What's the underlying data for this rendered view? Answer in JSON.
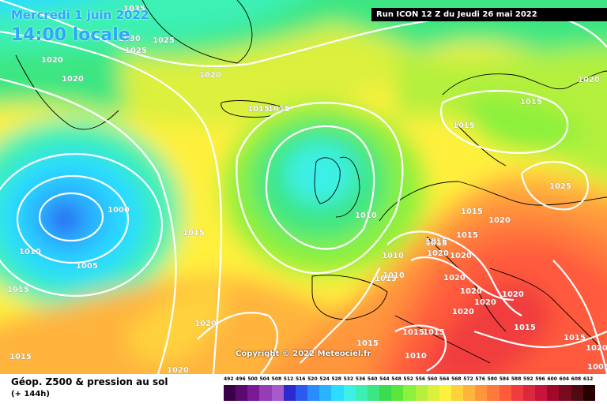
{
  "overlay": {
    "date": "Mercredi 1 juin 2022",
    "time": "14:00 locale",
    "run": "Run ICON 12 Z du Jeudi 26 mai 2022",
    "copyright": "Copyright © 2022 Meteociel.fr"
  },
  "footer": {
    "title": "Géop. Z500 & pression au sol",
    "subtitle": "(+ 144h)"
  },
  "scale": {
    "labels": [
      "492",
      "496",
      "500",
      "504",
      "508",
      "512",
      "516",
      "520",
      "524",
      "528",
      "532",
      "536",
      "540",
      "544",
      "548",
      "552",
      "556",
      "560",
      "564",
      "568",
      "572",
      "576",
      "580",
      "584",
      "588",
      "592",
      "596",
      "600",
      "604",
      "608",
      "612"
    ],
    "colors": [
      "#3c0046",
      "#5a0a6e",
      "#7a1a96",
      "#963cb4",
      "#a85ac8",
      "#2a2ad0",
      "#2a5af0",
      "#2a8cff",
      "#2ab4ff",
      "#2adcff",
      "#3cf0e6",
      "#3cf0b4",
      "#3ce682",
      "#3cdc50",
      "#5ae63c",
      "#8cf03c",
      "#b4f03c",
      "#dcf03c",
      "#fff03c",
      "#ffd23c",
      "#ffb43c",
      "#ff963c",
      "#ff783c",
      "#ff5a3c",
      "#f03c3c",
      "#dc283c",
      "#c8143c",
      "#a00a28",
      "#780a1e",
      "#500a14",
      "#280000"
    ]
  },
  "pressure_labels": [
    "1035",
    "1030",
    "1025",
    "1025",
    "1020",
    "1020",
    "1020",
    "1020",
    "1015",
    "1015",
    "1000",
    "1005",
    "1010",
    "1015",
    "1015",
    "1020",
    "1020",
    "1010",
    "1015",
    "1010",
    "1015",
    "1020",
    "1015",
    "1020",
    "1020",
    "1020",
    "1015",
    "1020",
    "1020",
    "1020",
    "1015",
    "1015",
    "1015",
    "1015",
    "1010",
    "1015",
    "1015",
    "1020",
    "1025",
    "1015",
    "1020",
    "1015",
    "1015",
    "1010",
    "1005"
  ]
}
